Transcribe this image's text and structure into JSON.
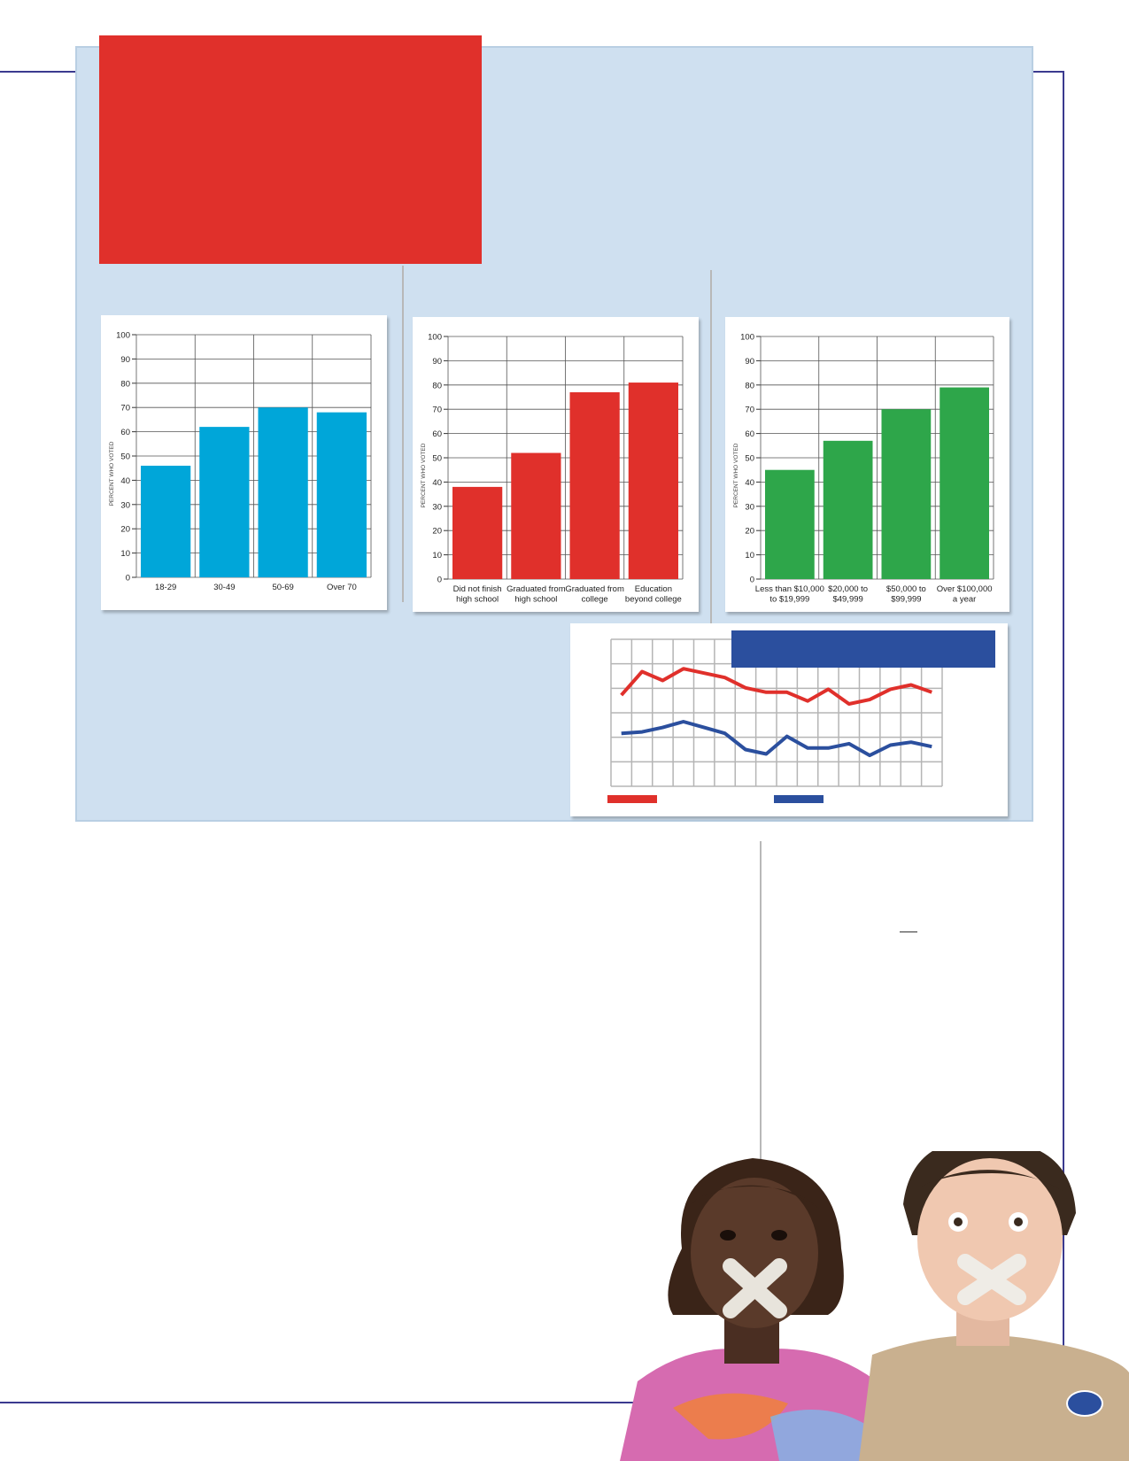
{
  "colors": {
    "frame": "#3b3a8f",
    "panel": "#cfe0f0",
    "red_box": "#e0302b",
    "age_bars": "#00a6d9",
    "education_bars": "#e0302b",
    "income_bars": "#2ea64a",
    "line_red": "#e0302b",
    "line_blue": "#2b4f9e",
    "line_header": "#2b4f9e"
  },
  "chart_data": [
    {
      "type": "bar",
      "categories": [
        "18-29",
        "30-49",
        "50-69",
        "Over 70"
      ],
      "values": [
        46,
        62,
        70,
        68
      ],
      "ylabel": "PERCENT WHO VOTED",
      "ylim": [
        0,
        100
      ],
      "yticks": [
        "0",
        "10",
        "20",
        "30",
        "40",
        "50",
        "60",
        "70",
        "80",
        "90",
        "100"
      ],
      "grid": true
    },
    {
      "type": "bar",
      "categories": [
        "Did not finish|high school",
        "Graduated from|high school",
        "Graduated from|college",
        "Education|beyond college"
      ],
      "values": [
        38,
        52,
        77,
        81
      ],
      "ylabel": "PERCENT WHO VOTED",
      "ylim": [
        0,
        100
      ],
      "yticks": [
        "0",
        "10",
        "20",
        "30",
        "40",
        "50",
        "60",
        "70",
        "80",
        "90",
        "100"
      ],
      "grid": true
    },
    {
      "type": "bar",
      "categories": [
        "Less than $10,000|to $19,999",
        "$20,000 to|$49,999",
        "$50,000 to|$99,999",
        "Over $100,000|a year"
      ],
      "values": [
        45,
        57,
        70,
        79
      ],
      "ylabel": "PERCENT WHO VOTED",
      "ylim": [
        0,
        100
      ],
      "yticks": [
        "0",
        "10",
        "20",
        "30",
        "40",
        "50",
        "60",
        "70",
        "80",
        "90",
        "100"
      ],
      "grid": true
    },
    {
      "type": "line",
      "x": [
        1,
        2,
        3,
        4,
        5,
        6,
        7,
        8,
        9,
        10,
        11,
        12,
        13,
        14,
        15,
        16
      ],
      "ylim": [
        0,
        100
      ],
      "series": [
        {
          "values": [
            62,
            78,
            72,
            80,
            77,
            74,
            67,
            64,
            64,
            58,
            66,
            56,
            59,
            66,
            69,
            64
          ]
        },
        {
          "values": [
            36,
            37,
            40,
            44,
            40,
            36,
            25,
            22,
            34,
            26,
            26,
            29,
            21,
            28,
            30,
            27
          ]
        }
      ],
      "grid": true
    }
  ]
}
